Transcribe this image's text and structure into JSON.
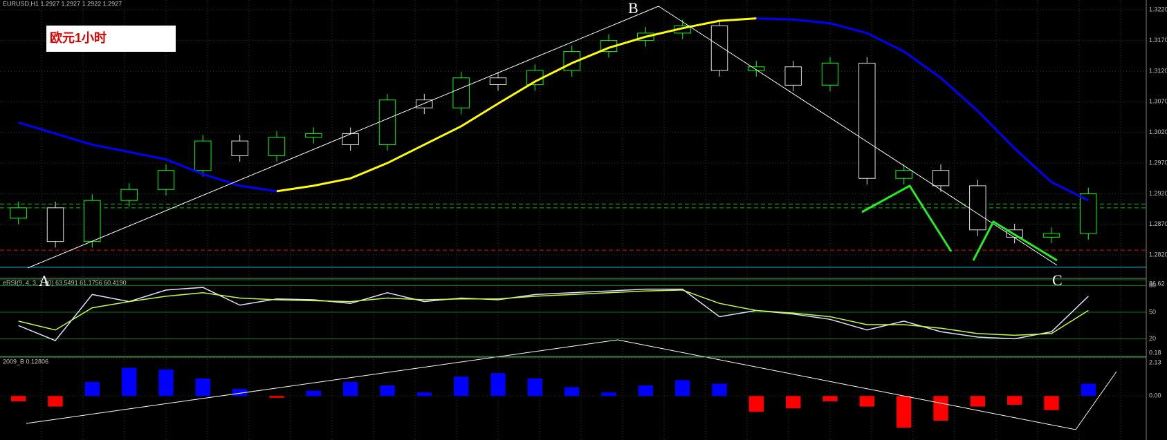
{
  "chart_data": [
    {
      "type": "candlestick",
      "title": "EURUSD,H1  1.2927 1.2927 1.2922 1.2927",
      "label": "欧元1小时",
      "annotations": [
        "A",
        "B",
        "C"
      ],
      "up_color": "#00ff00",
      "down_color": "#e0e0e0",
      "open": [
        1.288,
        1.2897,
        1.2842,
        1.2909,
        1.2927,
        1.2958,
        1.3006,
        1.2982,
        1.3012,
        1.3018,
        1.3,
        1.3073,
        1.306,
        1.3109,
        1.3098,
        1.3121,
        1.3152,
        1.317,
        1.3182,
        1.3194,
        1.3121,
        1.3127,
        1.3097,
        1.3133,
        1.2945,
        1.2958,
        1.2933,
        1.2861,
        1.2849,
        1.2855
      ],
      "high": [
        1.2907,
        1.2907,
        1.2919,
        1.2937,
        1.2968,
        1.3016,
        1.3016,
        1.3022,
        1.3028,
        1.3028,
        1.3083,
        1.3083,
        1.3119,
        1.3119,
        1.3131,
        1.3162,
        1.318,
        1.3192,
        1.3204,
        1.3204,
        1.3137,
        1.3137,
        1.3143,
        1.3143,
        1.2968,
        1.2968,
        1.2943,
        1.2871,
        1.2865,
        1.293
      ],
      "low": [
        1.287,
        1.2832,
        1.2832,
        1.2899,
        1.2917,
        1.2948,
        1.2972,
        1.2972,
        1.3002,
        1.299,
        1.299,
        1.305,
        1.305,
        1.3088,
        1.3088,
        1.3111,
        1.3142,
        1.316,
        1.3172,
        1.3111,
        1.3111,
        1.3087,
        1.3087,
        1.2935,
        1.2935,
        1.2923,
        1.2851,
        1.2839,
        1.2839,
        1.2845
      ],
      "close": [
        1.2897,
        1.2842,
        1.2909,
        1.2927,
        1.2958,
        1.3006,
        1.2982,
        1.3012,
        1.3018,
        1.3,
        1.3073,
        1.306,
        1.3109,
        1.3098,
        1.3121,
        1.3152,
        1.317,
        1.3182,
        1.3194,
        1.3121,
        1.3127,
        1.3097,
        1.3133,
        1.2945,
        1.2958,
        1.2933,
        1.2861,
        1.2849,
        1.2855,
        1.292
      ],
      "series": [
        {
          "color": "#0000ff",
          "values": [
            1.3036,
            1.3018,
            1.3,
            1.2988,
            1.2976,
            1.2952,
            1.2933,
            1.2924,
            null,
            null,
            null,
            null,
            null,
            null,
            null,
            null,
            null,
            null,
            null,
            null,
            1.3206,
            1.3204,
            1.3198,
            1.3182,
            1.3152,
            1.3109,
            1.3055,
            1.2994,
            1.2939,
            1.2909
          ]
        },
        {
          "color": "#ffff00",
          "values": [
            null,
            null,
            null,
            null,
            null,
            null,
            null,
            1.2924,
            1.2933,
            1.2945,
            1.297,
            1.3,
            1.303,
            1.3067,
            1.3103,
            1.3133,
            1.3158,
            1.3176,
            1.319,
            1.3202,
            1.3206,
            null,
            null,
            null,
            null,
            null,
            null,
            null,
            null,
            null
          ]
        }
      ],
      "hlines": [
        {
          "value": 1.2903,
          "color": "#00c000",
          "dash": true
        },
        {
          "value": 1.2897,
          "color": "#00c000",
          "dash": true
        },
        {
          "value": 1.2828,
          "color": "#ff0000",
          "dash": true
        },
        {
          "value": 1.28,
          "color": "#20c0d0",
          "dash": false
        }
      ],
      "ylim": [
        1.2783,
        1.3236
      ],
      "yticks": [
        {
          "value": 1.282,
          "label": "1.2820"
        },
        {
          "value": 1.287,
          "label": "1.2870"
        },
        {
          "value": 1.292,
          "label": "1.2920"
        },
        {
          "value": 1.297,
          "label": "1.2970"
        },
        {
          "value": 1.302,
          "label": "1.3020"
        },
        {
          "value": 1.307,
          "label": "1.3070"
        },
        {
          "value": 1.312,
          "label": "1.3120"
        },
        {
          "value": 1.317,
          "label": "1.3170"
        },
        {
          "value": 1.322,
          "label": "1.3220"
        }
      ],
      "grid": true
    },
    {
      "type": "line",
      "title": "eRSI(9, 4, 3, 1.00) 63.5491 61.1756 60.4190",
      "series": [
        {
          "color": "#e0e0ff",
          "values": [
            35,
            18,
            70,
            62,
            75,
            78,
            58,
            65,
            64,
            60,
            72,
            62,
            66,
            64,
            70,
            72,
            74,
            76,
            76,
            45,
            52,
            48,
            42,
            30,
            40,
            28,
            22,
            20,
            28,
            68
          ]
        },
        {
          "color": "#c0ff40",
          "values": [
            40,
            30,
            55,
            62,
            68,
            72,
            66,
            64,
            63,
            62,
            66,
            64,
            65,
            65,
            68,
            70,
            72,
            74,
            75,
            60,
            52,
            49,
            45,
            36,
            36,
            32,
            26,
            24,
            26,
            52
          ]
        }
      ],
      "level_color": "#008000",
      "ylim": [
        0.18,
        86.62
      ],
      "yticks": [
        0.18,
        20,
        50,
        80,
        86.62
      ],
      "grid": true
    },
    {
      "type": "bar",
      "title": "2009_B 0.12806",
      "up_color": "#0000ff",
      "down_color": "#ff0000",
      "values": [
        -0.3,
        -0.6,
        0.8,
        1.6,
        1.5,
        1.0,
        0.4,
        -0.1,
        0.3,
        0.8,
        0.6,
        0.2,
        1.1,
        1.3,
        1.0,
        0.5,
        0.2,
        0.6,
        0.9,
        0.7,
        -0.9,
        -0.7,
        -0.3,
        -0.6,
        -1.8,
        -1.4,
        -0.6,
        -0.5,
        -0.8,
        0.7
      ],
      "ylim": [
        -2.5,
        2.13
      ],
      "yticks": [
        2.13,
        {
          "value": 0,
          "label": "0.00"
        }
      ],
      "grid": true
    }
  ]
}
